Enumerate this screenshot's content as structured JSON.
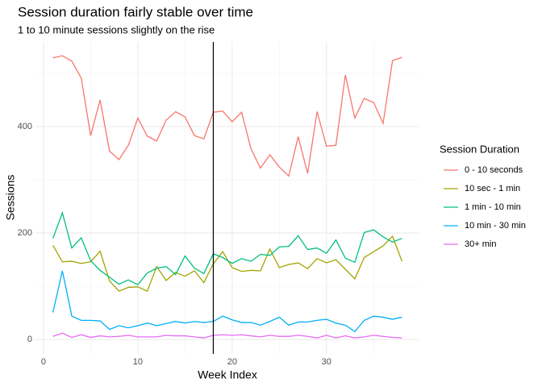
{
  "chart_data": {
    "type": "line",
    "title": "Session duration fairly stable over time",
    "subtitle": "1 to 10 minute sessions slightly on the rise",
    "xlabel": "Week Index",
    "ylabel": "Sessions",
    "legend_title": "Session Duration",
    "legend": "right",
    "grid": true,
    "vline": 18,
    "x": [
      1,
      2,
      3,
      4,
      5,
      6,
      7,
      8,
      9,
      10,
      11,
      12,
      13,
      14,
      15,
      16,
      17,
      18,
      19,
      20,
      21,
      22,
      23,
      24,
      25,
      26,
      27,
      28,
      29,
      30,
      31,
      32,
      33,
      34,
      35,
      36,
      37,
      38
    ],
    "xlim": [
      -0.85,
      39.85
    ],
    "xticks": [
      0,
      10,
      20,
      30
    ],
    "ylim": [
      -27,
      559
    ],
    "yticks": [
      0,
      200,
      400
    ],
    "series": [
      {
        "name": "0 - 10 seconds",
        "color": "#f8766d",
        "values": [
          529,
          533,
          523,
          491,
          383,
          450,
          354,
          338,
          365,
          416,
          382,
          373,
          412,
          428,
          418,
          383,
          377,
          427,
          429,
          409,
          427,
          358,
          322,
          347,
          324,
          307,
          381,
          312,
          428,
          363,
          365,
          497,
          416,
          453,
          445,
          406,
          524,
          530
        ]
      },
      {
        "name": "10 sec - 1 min",
        "color": "#a3a500",
        "values": [
          177,
          146,
          147,
          143,
          146,
          166,
          110,
          91,
          98,
          99,
          91,
          137,
          111,
          126,
          119,
          129,
          107,
          142,
          165,
          135,
          128,
          130,
          129,
          170,
          135,
          141,
          144,
          133,
          152,
          144,
          150,
          132,
          114,
          154,
          165,
          176,
          194,
          147
        ]
      },
      {
        "name": "1 min - 10 min",
        "color": "#00bf7d",
        "values": [
          190,
          238,
          172,
          191,
          148,
          130,
          117,
          104,
          112,
          103,
          125,
          134,
          137,
          122,
          157,
          134,
          124,
          161,
          154,
          143,
          152,
          147,
          160,
          158,
          174,
          175,
          195,
          169,
          172,
          162,
          187,
          153,
          145,
          201,
          206,
          193,
          183,
          190
        ]
      },
      {
        "name": "10 min - 30 min",
        "color": "#00b0f6",
        "values": [
          51,
          129,
          44,
          36,
          36,
          35,
          19,
          26,
          22,
          26,
          31,
          26,
          30,
          34,
          31,
          34,
          32,
          34,
          44,
          37,
          32,
          32,
          27,
          34,
          42,
          27,
          33,
          33,
          36,
          38,
          31,
          27,
          15,
          36,
          44,
          42,
          38,
          42
        ]
      },
      {
        "name": "30+ min",
        "color": "#e76bf3",
        "values": [
          6,
          12,
          4,
          9,
          4,
          7,
          5,
          6,
          8,
          5,
          5,
          5,
          8,
          7,
          7,
          5,
          3,
          8,
          9,
          8,
          9,
          7,
          5,
          8,
          6,
          6,
          8,
          6,
          3,
          8,
          3,
          7,
          3,
          5,
          8,
          6,
          4,
          3
        ]
      }
    ]
  }
}
